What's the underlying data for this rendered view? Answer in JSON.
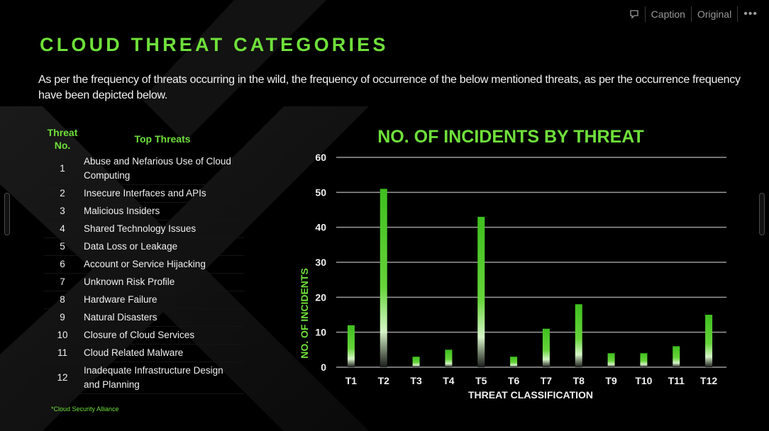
{
  "toolbar": {
    "caption_label": "Caption",
    "original_label": "Original",
    "more_label": "•••"
  },
  "slide": {
    "title": "CLOUD THREAT CATEGORIES",
    "intro": "As per the frequency of threats occurring in the wild, the frequency of occurrence of the below mentioned threats, as per the occurrence frequency have been depicted below.",
    "table": {
      "header_num": "Threat No.",
      "header_name": "Top Threats",
      "rows": [
        {
          "num": "1",
          "name": "Abuse and Nefarious Use of Cloud Computing"
        },
        {
          "num": "2",
          "name": "Insecure Interfaces and APIs"
        },
        {
          "num": "3",
          "name": "Malicious Insiders"
        },
        {
          "num": "4",
          "name": "Shared Technology Issues"
        },
        {
          "num": "5",
          "name": "Data Loss or Leakage"
        },
        {
          "num": "6",
          "name": "Account or Service Hijacking"
        },
        {
          "num": "7",
          "name": "Unknown Risk Profile"
        },
        {
          "num": "8",
          "name": "Hardware Failure"
        },
        {
          "num": "9",
          "name": "Natural Disasters"
        },
        {
          "num": "10",
          "name": "Closure of Cloud Services"
        },
        {
          "num": "11",
          "name": "Cloud Related Malware"
        },
        {
          "num": "12",
          "name": "Inadequate Infrastructure Design and Planning"
        }
      ]
    },
    "footnote": "*Cloud Security Alliance"
  },
  "colors": {
    "accent_green": "#6fe03a",
    "background": "#000000"
  },
  "chart_data": {
    "type": "bar",
    "title": "NO. OF INCIDENTS BY THREAT",
    "xlabel": "THREAT CLASSIFICATION",
    "ylabel": "NO. OF INCIDENTS",
    "categories": [
      "T1",
      "T2",
      "T3",
      "T4",
      "T5",
      "T6",
      "T7",
      "T8",
      "T9",
      "T10",
      "T11",
      "T12"
    ],
    "values": [
      12,
      51,
      3,
      5,
      43,
      3,
      11,
      18,
      4,
      4,
      6,
      15
    ],
    "ylim": [
      0,
      60
    ],
    "yticks": [
      0,
      10,
      20,
      30,
      40,
      50,
      60
    ],
    "grid": true,
    "legend": "none"
  }
}
